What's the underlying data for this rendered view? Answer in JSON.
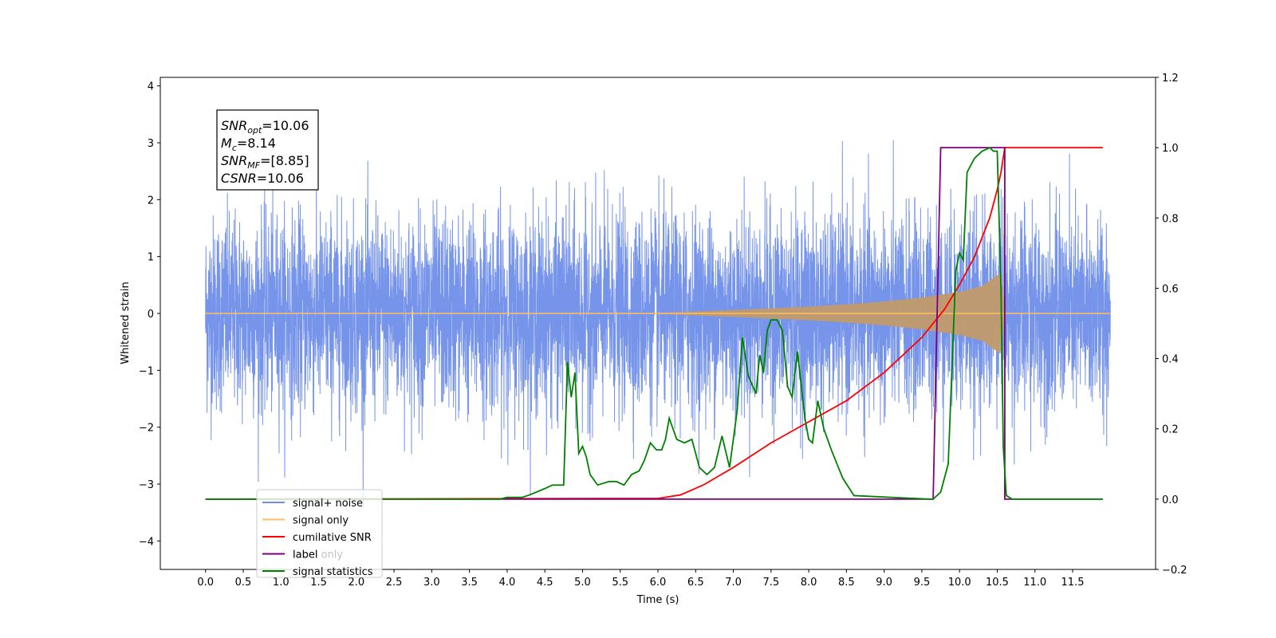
{
  "chart_data": {
    "type": "line",
    "xlabel": "Time (s)",
    "ylabel": "Whitened strain",
    "xlim": [
      -0.6,
      12.6
    ],
    "ylim": [
      -4.5,
      4.15
    ],
    "y2lim": [
      -0.2,
      1.2
    ],
    "x_ticks": [
      0.0,
      0.5,
      1.0,
      1.5,
      2.0,
      2.5,
      3.0,
      3.5,
      4.0,
      4.5,
      5.0,
      5.5,
      6.0,
      6.5,
      7.0,
      7.5,
      8.0,
      8.5,
      9.0,
      9.5,
      10.0,
      10.5,
      11.0,
      11.5
    ],
    "x_tick_labels": [
      "0.0",
      "0.5",
      "1.0",
      "1.5",
      "2.0",
      "2.5",
      "3.0",
      "3.5",
      "4.0",
      "4.5",
      "5.0",
      "5.5",
      "6.0",
      "6.5",
      "7.0",
      "7.5",
      "8.0",
      "8.5",
      "9.0",
      "9.5",
      "10.0",
      "10.5",
      "11.0",
      "11.5"
    ],
    "y_ticks": [
      -4,
      -3,
      -2,
      -1,
      0,
      1,
      2,
      3,
      4
    ],
    "y_tick_labels": [
      "−4",
      "−3",
      "−2",
      "−1",
      "0",
      "1",
      "2",
      "3",
      "4"
    ],
    "y2_ticks": [
      -0.2,
      0.0,
      0.2,
      0.4,
      0.6,
      0.8,
      1.0,
      1.2
    ],
    "y2_tick_labels": [
      "−0.2",
      "0.0",
      "0.2",
      "0.4",
      "0.6",
      "0.8",
      "1.0",
      "1.2"
    ],
    "grid": false,
    "legend_position": "bottom-left",
    "series": [
      {
        "name": "signal+ noise",
        "axis": "left",
        "color": "#6f8ee8",
        "description": "dense noisy strain, roughly ±2.3 with spikes to ±4, from 0.0 s to 12.0 s"
      },
      {
        "name": "signal only",
        "axis": "left",
        "color": "#ffbf60",
        "envelope": {
          "x": [
            0.0,
            6.0,
            7.0,
            8.0,
            8.5,
            9.0,
            9.5,
            10.0,
            10.3,
            10.55,
            10.6,
            12.0
          ],
          "y": [
            0.0,
            0.01,
            0.06,
            0.12,
            0.16,
            0.21,
            0.28,
            0.38,
            0.48,
            0.72,
            0.0,
            0.0
          ]
        }
      },
      {
        "name": "cumilative SNR",
        "axis": "right",
        "color": "#ff0000",
        "x": [
          0.0,
          6.0,
          6.3,
          6.6,
          7.0,
          7.5,
          8.0,
          8.5,
          9.0,
          9.5,
          9.8,
          10.0,
          10.2,
          10.4,
          10.5,
          10.55,
          10.6,
          11.9
        ],
        "y": [
          0.0,
          0.002,
          0.012,
          0.04,
          0.09,
          0.16,
          0.22,
          0.28,
          0.36,
          0.46,
          0.54,
          0.61,
          0.69,
          0.8,
          0.88,
          0.93,
          1.0,
          1.0
        ]
      },
      {
        "name": "label",
        "axis": "right",
        "color": "#7f007f",
        "x": [
          0.0,
          9.65,
          9.75,
          10.6,
          10.6,
          11.9
        ],
        "y": [
          0.0,
          0.0,
          1.0,
          1.0,
          0.0,
          0.0
        ]
      },
      {
        "name": "label only",
        "axis": "right",
        "color": "#d62728",
        "note": "legend entry partially hidden behind the label line"
      },
      {
        "name": "signal statistics",
        "axis": "right",
        "color": "#008000",
        "x": [
          0.0,
          3.9,
          4.0,
          4.2,
          4.3,
          4.5,
          4.6,
          4.75,
          4.8,
          4.85,
          4.9,
          4.95,
          5.0,
          5.05,
          5.1,
          5.2,
          5.35,
          5.45,
          5.55,
          5.65,
          5.75,
          5.82,
          5.9,
          5.98,
          6.05,
          6.1,
          6.15,
          6.25,
          6.35,
          6.45,
          6.55,
          6.65,
          6.75,
          6.85,
          6.95,
          7.05,
          7.12,
          7.2,
          7.3,
          7.35,
          7.4,
          7.45,
          7.5,
          7.58,
          7.65,
          7.72,
          7.78,
          7.85,
          7.95,
          8.0,
          8.05,
          8.12,
          8.2,
          8.3,
          8.45,
          8.6,
          9.6,
          9.65,
          9.75,
          9.85,
          9.95,
          10.0,
          10.05,
          10.1,
          10.2,
          10.3,
          10.4,
          10.45,
          10.5,
          10.55,
          10.58,
          10.62,
          10.7,
          11.9
        ],
        "y": [
          0.0,
          0.0,
          0.005,
          0.005,
          0.012,
          0.03,
          0.04,
          0.04,
          0.39,
          0.29,
          0.36,
          0.13,
          0.15,
          0.12,
          0.07,
          0.04,
          0.05,
          0.05,
          0.04,
          0.07,
          0.08,
          0.11,
          0.16,
          0.14,
          0.14,
          0.17,
          0.23,
          0.17,
          0.16,
          0.17,
          0.09,
          0.07,
          0.09,
          0.18,
          0.09,
          0.25,
          0.46,
          0.35,
          0.3,
          0.41,
          0.36,
          0.48,
          0.51,
          0.51,
          0.48,
          0.32,
          0.29,
          0.42,
          0.23,
          0.17,
          0.16,
          0.28,
          0.2,
          0.14,
          0.06,
          0.01,
          0.0,
          0.0,
          0.02,
          0.1,
          0.65,
          0.7,
          0.68,
          0.93,
          0.97,
          0.99,
          1.0,
          0.99,
          0.99,
          0.6,
          0.15,
          0.01,
          0.0,
          0.0
        ]
      }
    ],
    "annotations": [
      {
        "label": "SNR",
        "sub": "opt",
        "value": "=10.06"
      },
      {
        "label": "M",
        "sub": "c",
        "value": "=8.14"
      },
      {
        "label": "SNR",
        "sub": "MF",
        "value": "=[8.85]"
      },
      {
        "label": "CSNR",
        "sub": "",
        "value": "=10.06"
      }
    ]
  }
}
